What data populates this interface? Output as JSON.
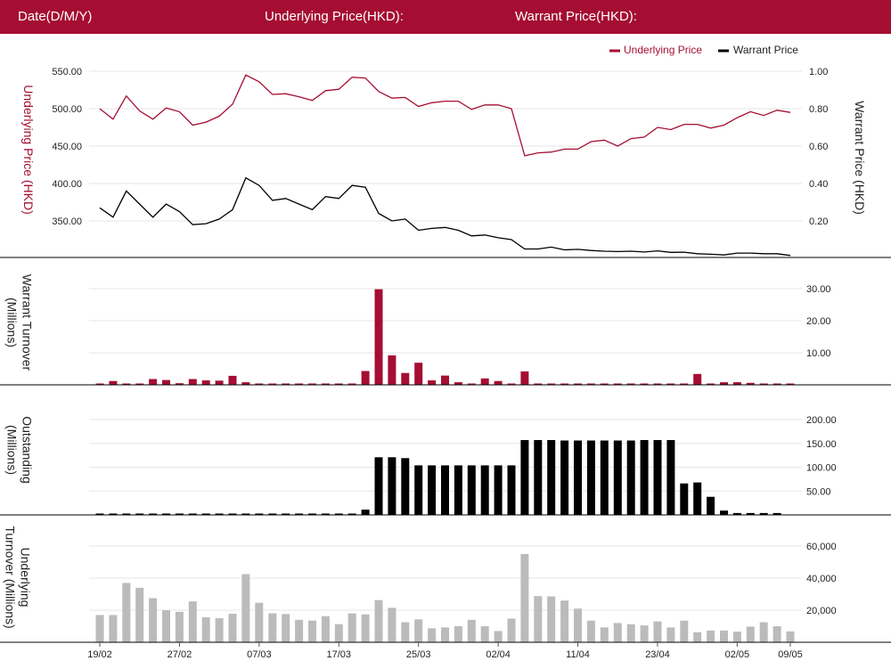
{
  "header": {
    "date_label": "Date(D/M/Y)",
    "underlying_label": "Underlying Price(HKD):",
    "warrant_label": "Warrant Price(HKD):"
  },
  "colors": {
    "brand": "#a50e32",
    "warrant": "#000000",
    "underlying_turnover": "#bbbbbb",
    "grid": "#e6e6e6"
  },
  "chart_data": [
    {
      "type": "line",
      "title": "",
      "legend": {
        "placement": "top-right",
        "entries": [
          "Underlying Price",
          "Warrant Price"
        ]
      },
      "ylabel_left": "Underlying Price (HKD)",
      "ylabel_right": "Warrant  Price (HKD)",
      "yticks_left": [
        "550.00",
        "500.00",
        "450.00",
        "400.00",
        "350.00"
      ],
      "yticks_right": [
        "1.00",
        "0.80",
        "0.60",
        "0.40",
        "0.20"
      ],
      "ylim_left": [
        300,
        550
      ],
      "ylim_right": [
        0,
        1.0
      ],
      "grid": true,
      "series": [
        {
          "name": "Underlying Price",
          "axis": "left",
          "values": [
            500,
            486,
            517,
            497,
            486,
            501,
            496,
            478,
            482,
            490,
            506,
            545,
            536,
            519,
            520,
            516,
            511,
            524,
            526,
            542,
            541,
            523,
            514,
            515,
            503,
            508,
            510,
            510,
            499,
            505,
            505,
            500,
            437,
            441,
            442,
            446,
            446,
            456,
            458,
            450,
            460,
            462,
            475,
            472,
            479,
            479,
            474,
            478,
            488,
            496,
            491,
            498,
            495
          ]
        },
        {
          "name": "Warrant Price",
          "axis": "right",
          "values": [
            0.27,
            0.22,
            0.36,
            0.29,
            0.22,
            0.29,
            0.25,
            0.18,
            0.185,
            0.21,
            0.26,
            0.43,
            0.39,
            0.31,
            0.32,
            0.29,
            0.26,
            0.33,
            0.32,
            0.39,
            0.38,
            0.24,
            0.2,
            0.21,
            0.15,
            0.16,
            0.165,
            0.15,
            0.12,
            0.125,
            0.11,
            0.1,
            0.05,
            0.05,
            0.06,
            0.045,
            0.048,
            0.042,
            0.038,
            0.036,
            0.038,
            0.034,
            0.04,
            0.032,
            0.033,
            0.025,
            0.022,
            0.018,
            0.028,
            0.028,
            0.025,
            0.025,
            0.015
          ]
        }
      ]
    },
    {
      "type": "bar",
      "ylabel": "Warrant  Turnover (Millions)",
      "yticks": [
        "30.00",
        "20.00",
        "10.00"
      ],
      "ylim": [
        0,
        30
      ],
      "grid": true,
      "values": [
        0.3,
        1.2,
        0.3,
        0.3,
        1.8,
        1.5,
        0.5,
        1.8,
        1.4,
        1.3,
        2.8,
        0.8,
        0.3,
        0.3,
        0.3,
        0.3,
        0.3,
        0.3,
        0.3,
        0.3,
        4.3,
        29.8,
        9.2,
        3.7,
        6.9,
        1.4,
        2.9,
        0.8,
        0.4,
        2.0,
        1.2,
        0.3,
        4.2,
        0.3,
        0.3,
        0.3,
        0.3,
        0.3,
        0.3,
        0.3,
        0.3,
        0.3,
        0.3,
        0.3,
        0.3,
        3.4,
        0.3,
        0.8,
        0.8,
        0.6,
        0.3,
        0.3,
        0.3
      ]
    },
    {
      "type": "bar",
      "ylabel": "Outstanding (Millions)",
      "yticks": [
        "200.00",
        "150.00",
        "100.00",
        "50.00"
      ],
      "ylim": [
        0,
        200
      ],
      "grid": true,
      "values": [
        2,
        2,
        2,
        2,
        2,
        2,
        2,
        2,
        2,
        2,
        2,
        2,
        2,
        2,
        2,
        2,
        2,
        2,
        2,
        2,
        11,
        121,
        121,
        119,
        104,
        104,
        104,
        104,
        104,
        104,
        104,
        104,
        157,
        157,
        157,
        156,
        156,
        156,
        156,
        156,
        156,
        157,
        157,
        157,
        66,
        68,
        38,
        9,
        4,
        4,
        4,
        4,
        null
      ]
    },
    {
      "type": "bar",
      "ylabel": "Underlying Turnover (Millions)",
      "yticks": [
        "60,000",
        "40,000",
        "20,000"
      ],
      "ylim": [
        0,
        60000
      ],
      "grid": true,
      "xticks": [
        "19/02",
        "27/02",
        "07/03",
        "17/03",
        "25/03",
        "02/04",
        "11/04",
        "23/04",
        "02/05",
        "09/05"
      ],
      "values": [
        17000,
        17000,
        37000,
        34000,
        27500,
        20000,
        19000,
        25500,
        15600,
        15000,
        17800,
        42500,
        24600,
        18100,
        17600,
        14000,
        13500,
        16300,
        11300,
        18000,
        17400,
        26300,
        21500,
        12500,
        14300,
        8700,
        9300,
        10000,
        14000,
        10000,
        7000,
        14800,
        55000,
        28800,
        28600,
        26000,
        21000,
        13500,
        9300,
        12000,
        11300,
        10500,
        13000,
        9200,
        13500,
        6300,
        7300,
        7300,
        6600,
        9800,
        12500,
        10000,
        6800
      ]
    }
  ]
}
